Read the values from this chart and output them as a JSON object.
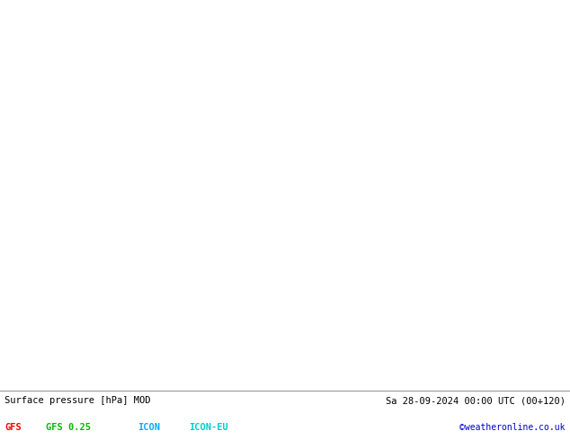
{
  "title_left": "Surface pressure [hPa] MOD",
  "title_right": "Sa 28-09-2024 00:00 UTC (00+120)",
  "legend_items": [
    {
      "label": "GFS",
      "color": "#ff0000"
    },
    {
      "label": "GFS 0.25",
      "color": "#00bb00"
    },
    {
      "label": "ICON",
      "color": "#00aaff"
    },
    {
      "label": "ICON-EU",
      "color": "#00cccc"
    }
  ],
  "copyright": "©weatheronline.co.uk",
  "bottom_bar_color": "#d8d8d8",
  "figsize": [
    6.34,
    4.9
  ],
  "dpi": 100,
  "map_extent": [
    -25,
    45,
    30,
    72
  ],
  "land_color": "#aad4aa",
  "sea_color": "#c8e0f0",
  "border_color": "#888888",
  "green": "#00aa00",
  "blue": "#0000dd",
  "red": "#dd0000",
  "cyan": "#00bbbb"
}
